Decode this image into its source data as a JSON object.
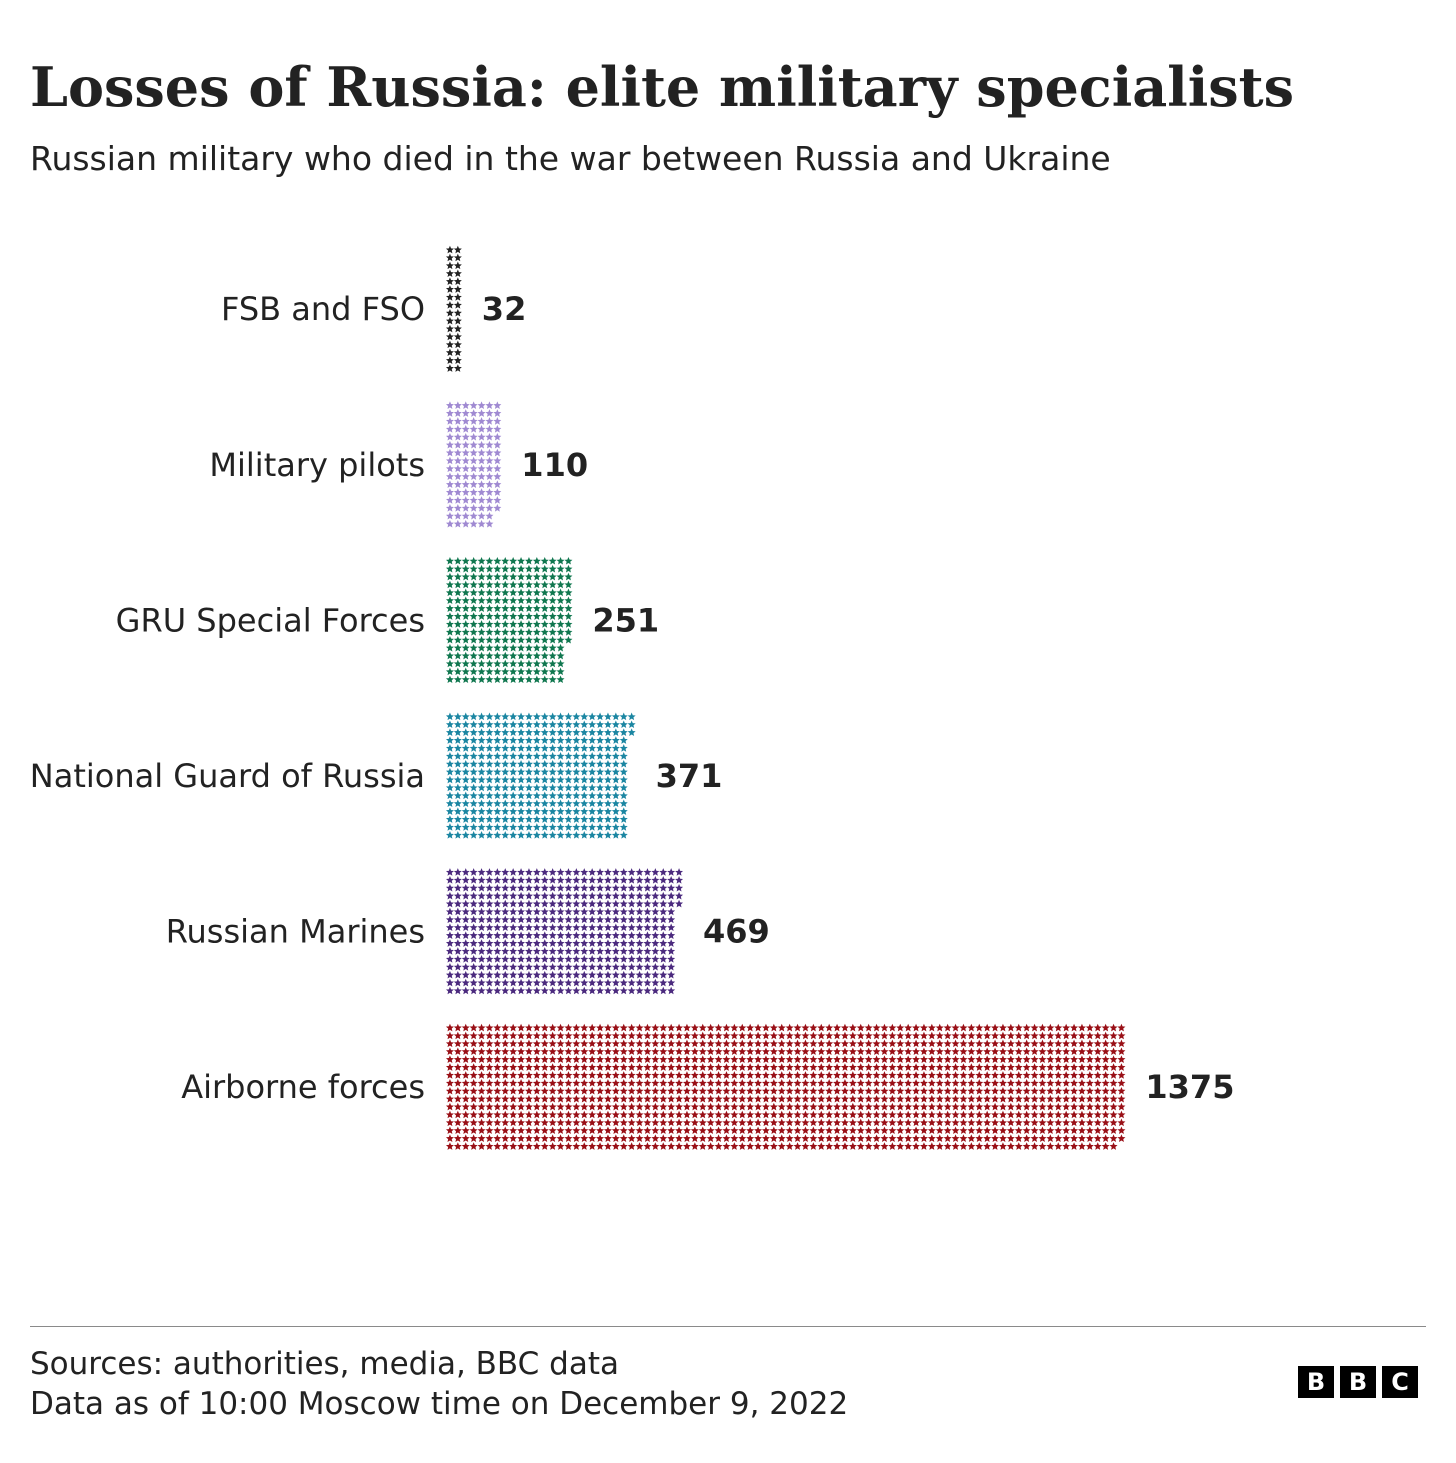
{
  "header": {
    "title": "Losses of Russia: elite military specialists",
    "subtitle": "Russian military who died in the war between Russia and Ukraine"
  },
  "chart_data": {
    "type": "bar",
    "orientation": "horizontal",
    "style": "pictogram-stars",
    "title": "Losses of Russia: elite military specialists",
    "subtitle": "Russian military who died in the war between Russia and Ukraine",
    "categories": [
      "FSB and FSO",
      "Military pilots",
      "GRU Special Forces",
      "National Guard of Russia",
      "Russian Marines",
      "Airborne forces"
    ],
    "values": [
      32,
      110,
      251,
      371,
      469,
      1375
    ],
    "value_labels": [
      "32",
      "110",
      "251",
      "371",
      "469",
      "1375"
    ],
    "colors": [
      "#222222",
      "#a08ad2",
      "#10774f",
      "#1b86a2",
      "#4b2a7e",
      "#990f16"
    ],
    "icon": "star-icon",
    "icons_per_column": 16,
    "grid": false,
    "legend": "none"
  },
  "footer": {
    "sources": "Sources: authorities, media, BBC data",
    "date_note": "Data as of 10:00 Moscow time on December 9, 2022"
  },
  "logo": {
    "letters": [
      "B",
      "B",
      "C"
    ]
  }
}
